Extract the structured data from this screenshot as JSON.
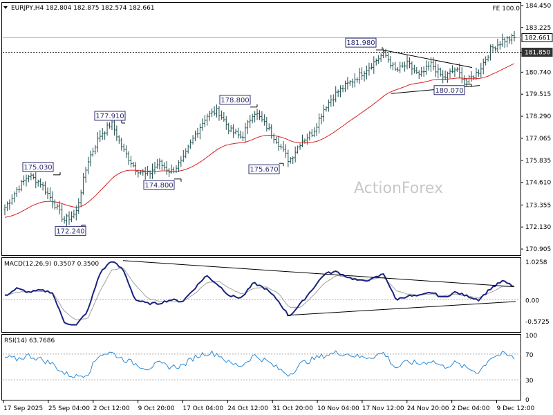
{
  "header": {
    "symbol_line": "EURJPY,H4  182.804 182.875 182.574 182.661",
    "fe_label": "FE 100.0"
  },
  "watermark": "ActionForex",
  "colors": {
    "candle": "#1f4e4e",
    "ma": "#d42020",
    "macd": "#1a237e",
    "signal": "#a0a0a0",
    "rsi": "#2b8ad6",
    "badge": "#333333"
  },
  "chart_data": [
    {
      "type": "candlestick",
      "panel": "price",
      "title": "EURJPY,H4",
      "ohlc_last": {
        "open": 182.804,
        "high": 182.875,
        "low": 182.574,
        "close": 182.661
      },
      "ylim": [
        170.6,
        184.6
      ],
      "y_ticks": [
        "184.450",
        "183.225",
        "181.850",
        "180.740",
        "179.515",
        "178.290",
        "177.065",
        "175.835",
        "174.610",
        "173.355",
        "172.130",
        "170.905"
      ],
      "price_badges": [
        "182.661",
        "181.850"
      ],
      "fe_label": "FE 100.0",
      "moving_average": "red line below price",
      "swing_labels": [
        {
          "label": "175.030",
          "value": 175.03
        },
        {
          "label": "172.240",
          "value": 172.24
        },
        {
          "label": "177.910",
          "value": 177.91
        },
        {
          "label": "174.800",
          "value": 174.8
        },
        {
          "label": "178.800",
          "value": 178.8
        },
        {
          "label": "175.670",
          "value": 175.67
        },
        {
          "label": "181.980",
          "value": 181.98
        },
        {
          "label": "180.070",
          "value": 180.07
        }
      ],
      "close_path": [
        173.2,
        174.2,
        175.0,
        174.6,
        173.6,
        172.5,
        172.9,
        175.8,
        177.2,
        177.9,
        176.4,
        175.4,
        175.0,
        175.7,
        175.2,
        175.8,
        177.2,
        178.3,
        178.6,
        177.5,
        177.1,
        178.6,
        177.8,
        176.9,
        175.8,
        176.9,
        177.4,
        178.8,
        179.6,
        180.1,
        180.6,
        181.2,
        181.8,
        180.8,
        181.2,
        180.5,
        181.2,
        180.4,
        180.9,
        180.2,
        180.8,
        182.0,
        182.5,
        182.66
      ]
    },
    {
      "type": "line",
      "panel": "macd",
      "title": "MACD(12,26,9) 0.3507 0.3500",
      "indicator": "MACD(12,26,9)",
      "current_values": [
        0.3507,
        0.35
      ],
      "ylim": [
        -0.85,
        1.12
      ],
      "y_ticks": [
        "1.0258",
        "0.00",
        "-0.5725"
      ],
      "series": [
        {
          "name": "MACD",
          "values": [
            0.1,
            0.3,
            0.2,
            0.25,
            0.2,
            -0.6,
            -0.7,
            -0.3,
            0.7,
            1.05,
            0.8,
            0.0,
            -0.1,
            -0.1,
            0.0,
            -0.05,
            0.3,
            0.65,
            0.4,
            0.1,
            0.05,
            0.45,
            0.3,
            0.0,
            -0.45,
            -0.1,
            0.3,
            0.7,
            0.75,
            0.6,
            0.5,
            0.55,
            0.7,
            0.0,
            0.1,
            0.1,
            0.2,
            0.05,
            0.2,
            0.1,
            0.0,
            0.3,
            0.5,
            0.35
          ]
        },
        {
          "name": "Signal",
          "values": [
            0.1,
            0.2,
            0.22,
            0.22,
            0.2,
            -0.3,
            -0.55,
            -0.5,
            0.2,
            0.8,
            0.85,
            0.4,
            0.05,
            -0.05,
            -0.05,
            -0.05,
            0.15,
            0.45,
            0.5,
            0.3,
            0.15,
            0.3,
            0.35,
            0.2,
            -0.2,
            -0.2,
            0.1,
            0.45,
            0.65,
            0.6,
            0.55,
            0.55,
            0.6,
            0.25,
            0.15,
            0.12,
            0.15,
            0.1,
            0.15,
            0.1,
            0.05,
            0.2,
            0.35,
            0.35
          ]
        }
      ]
    },
    {
      "type": "line",
      "panel": "rsi",
      "title": "RSI(14) 63.7686",
      "indicator": "RSI(14)",
      "current_value": 63.7686,
      "ylim": [
        0,
        100
      ],
      "y_ticks": [
        "100",
        "70",
        "30",
        "0"
      ],
      "series": [
        {
          "name": "RSI(14)",
          "values": [
            65,
            62,
            68,
            62,
            55,
            40,
            35,
            40,
            70,
            72,
            62,
            55,
            48,
            55,
            50,
            52,
            65,
            72,
            70,
            55,
            52,
            68,
            60,
            48,
            38,
            55,
            62,
            68,
            72,
            70,
            65,
            66,
            72,
            48,
            58,
            55,
            60,
            50,
            56,
            48,
            42,
            65,
            70,
            63.77
          ]
        }
      ]
    }
  ],
  "x_axis_labels": [
    "17 Sep 2025",
    "25 Sep 04:00",
    "2 Oct 12:00",
    "9 Oct 20:00",
    "17 Oct 04:00",
    "24 Oct 12:00",
    "31 Oct 20:00",
    "10 Nov 04:00",
    "17 Nov 12:00",
    "24 Nov 20:00",
    "2 Dec 04:00",
    "9 Dec 12:00"
  ]
}
